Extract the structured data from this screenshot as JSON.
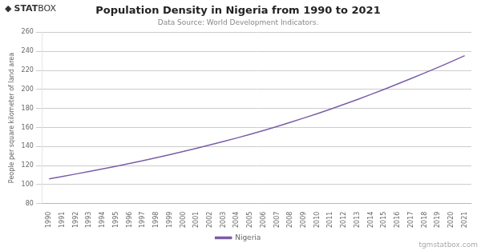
{
  "chart_data": {
    "type": "line",
    "title": "Population Density in Nigeria from 1990 to 2021",
    "subtitle": "Data Source: World Development Indicators.",
    "ylabel": "People per square kilometer of land area",
    "annotations": [
      "◆",
      "STAT",
      "BOX",
      "tgmstatbox.com"
    ],
    "x": [
      1990,
      1991,
      1992,
      1993,
      1994,
      1995,
      1996,
      1997,
      1998,
      1999,
      2000,
      2001,
      2002,
      2003,
      2004,
      2005,
      2006,
      2007,
      2008,
      2009,
      2010,
      2011,
      2012,
      2013,
      2014,
      2015,
      2016,
      2017,
      2018,
      2019,
      2020,
      2021
    ],
    "series": [
      {
        "name": "Nigeria",
        "color": "#7B5EA7",
        "values": [
          106.0,
          108.5,
          111.1,
          113.7,
          116.4,
          119.2,
          122.1,
          125.1,
          128.2,
          131.4,
          134.7,
          138.1,
          141.6,
          145.2,
          148.9,
          152.8,
          156.8,
          161.0,
          165.4,
          169.9,
          174.5,
          179.3,
          184.3,
          189.4,
          194.7,
          200.1,
          205.7,
          211.4,
          217.2,
          223.1,
          229.1,
          235.4
        ]
      }
    ],
    "xlim": [
      1989.5,
      2021.5
    ],
    "xticks": [
      1990,
      1991,
      1992,
      1993,
      1994,
      1995,
      1996,
      1997,
      1998,
      1999,
      2000,
      2001,
      2002,
      2003,
      2004,
      2005,
      2006,
      2007,
      2008,
      2009,
      2010,
      2011,
      2012,
      2013,
      2014,
      2015,
      2016,
      2017,
      2018,
      2019,
      2020,
      2021
    ],
    "ylim": [
      80,
      260
    ],
    "yticks": [
      80,
      100,
      120,
      140,
      160,
      180,
      200,
      220,
      240,
      260
    ],
    "grid": true,
    "legend": "bottom"
  }
}
